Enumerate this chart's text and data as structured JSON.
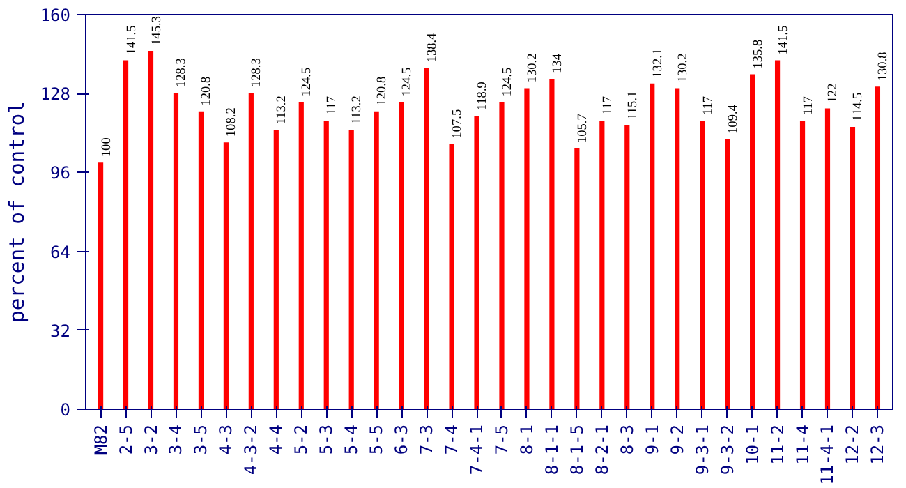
{
  "chart_data": {
    "type": "bar",
    "ylabel": "percent of control",
    "categories": [
      "M82",
      "2-5",
      "3-2",
      "3-4",
      "3-5",
      "4-3",
      "4-3-2",
      "4-4",
      "5-2",
      "5-3",
      "5-4",
      "5-5",
      "6-3",
      "7-3",
      "7-4",
      "7-4-1",
      "7-5",
      "8-1",
      "8-1-1",
      "8-1-5",
      "8-2-1",
      "8-3",
      "9-1",
      "9-2",
      "9-3-1",
      "9-3-2",
      "10-1",
      "11-2",
      "11-4",
      "11-4-1",
      "12-2",
      "12-3"
    ],
    "values": [
      100,
      141.5,
      145.3,
      128.3,
      120.8,
      108.2,
      128.3,
      113.2,
      124.5,
      117,
      113.2,
      120.8,
      124.5,
      138.4,
      107.5,
      118.9,
      124.5,
      130.2,
      134,
      105.7,
      117,
      115.1,
      132.1,
      130.2,
      117,
      109.4,
      135.8,
      141.5,
      117,
      122,
      114.5,
      130.8
    ],
    "color": "#ff0000",
    "ylim": [
      0,
      160
    ],
    "yticks": [
      0,
      32,
      64,
      96,
      128,
      160
    ],
    "grid": false,
    "data_labels": true
  }
}
